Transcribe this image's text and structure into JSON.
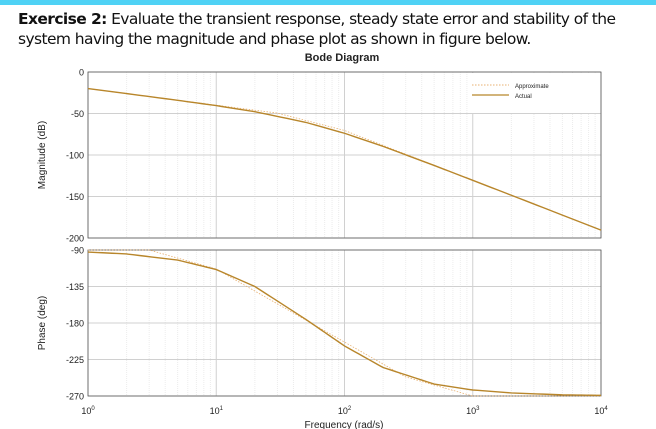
{
  "exercise": {
    "label": "Exercise 2:",
    "text": " Evaluate the transient response, steady state error and stability of the system having the magnitude and phase plot as shown in figure below."
  },
  "colors": {
    "top_bar": "#4fd2f5",
    "actual": "#b8862b",
    "approximate": "#e8b070",
    "grid": "#d8d8d8"
  },
  "chart_data": [
    {
      "type": "line",
      "title": "Bode Diagram",
      "xlabel": "Frequency  (rad/s)",
      "ylabel": "Magnitude (dB)",
      "xscale": "log",
      "xlim": [
        1,
        10000
      ],
      "ylim": [
        -200,
        0
      ],
      "yticks": [
        "0",
        "-50",
        "-100",
        "-150",
        "-200"
      ],
      "grid": true,
      "legend": {
        "placement": "top-right",
        "entries": [
          "Approximate",
          "Actual"
        ]
      },
      "series": [
        {
          "name": "Actual",
          "style": "solid",
          "x": [
            1,
            2,
            5,
            10,
            20,
            50,
            100,
            200,
            500,
            1000,
            2000,
            5000,
            10000
          ],
          "y": [
            -20.0,
            -26.0,
            -34.1,
            -40.5,
            -47.8,
            -60.7,
            -73.8,
            -89.6,
            -112.6,
            -130.5,
            -148.5,
            -172.4,
            -190.5
          ]
        },
        {
          "name": "Approximate",
          "style": "dotted",
          "x": [
            1,
            10,
            30,
            100,
            10000
          ],
          "y": [
            -20,
            -40,
            -49.5,
            -70.4,
            -190.4
          ]
        }
      ]
    },
    {
      "type": "line",
      "xlabel": "Frequency  (rad/s)",
      "ylabel": "Phase (deg)",
      "xscale": "log",
      "xlim": [
        1,
        10000
      ],
      "ylim": [
        -270,
        -90
      ],
      "yticks": [
        "-90",
        "-135",
        "-180",
        "-225",
        "-270"
      ],
      "xticks": [
        "10^0",
        "10^1",
        "10^2",
        "10^3",
        "10^4"
      ],
      "grid": true,
      "series": [
        {
          "name": "Actual",
          "style": "solid",
          "x": [
            1,
            2,
            5,
            10,
            20,
            50,
            100,
            200,
            500,
            1000,
            2000,
            5000,
            10000
          ],
          "y": [
            -92.5,
            -94.9,
            -102.4,
            -114.1,
            -135.0,
            -175.6,
            -208.3,
            -234.9,
            -255.3,
            -262.6,
            -266.2,
            -268.6,
            -269.2
          ]
        },
        {
          "name": "Approximate",
          "style": "dotted",
          "x": [
            1,
            3,
            10,
            300,
            1000,
            10000
          ],
          "y": [
            -90,
            -90,
            -113.5,
            -246.5,
            -270,
            -270
          ]
        }
      ]
    }
  ]
}
